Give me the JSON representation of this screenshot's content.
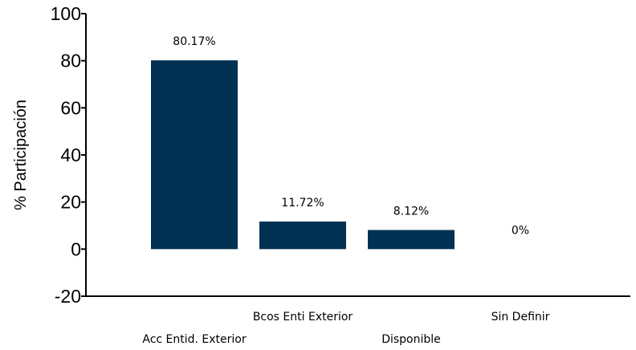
{
  "chart_data": {
    "type": "bar",
    "title": "",
    "xlabel": "",
    "ylabel": "% Participación",
    "categories": [
      "Acc Entid. Exterior",
      "Bcos Enti Exterior",
      "Disponible",
      "Sin Definir"
    ],
    "values": [
      80.17,
      11.72,
      8.12,
      0
    ],
    "data_labels": [
      "80.17%",
      "11.72%",
      "8.12%",
      "0%"
    ],
    "ylim": [
      -20,
      100
    ],
    "yticks": [
      -20,
      0,
      20,
      40,
      60,
      80,
      100
    ],
    "ytick_labels": [
      "-20",
      "0",
      "20",
      "40",
      "60",
      "80",
      "100"
    ],
    "grid": false,
    "legend": "none",
    "colors": {
      "bar": "#003153",
      "axis": "#000000",
      "text": "#000000",
      "background": "#ffffff"
    }
  }
}
